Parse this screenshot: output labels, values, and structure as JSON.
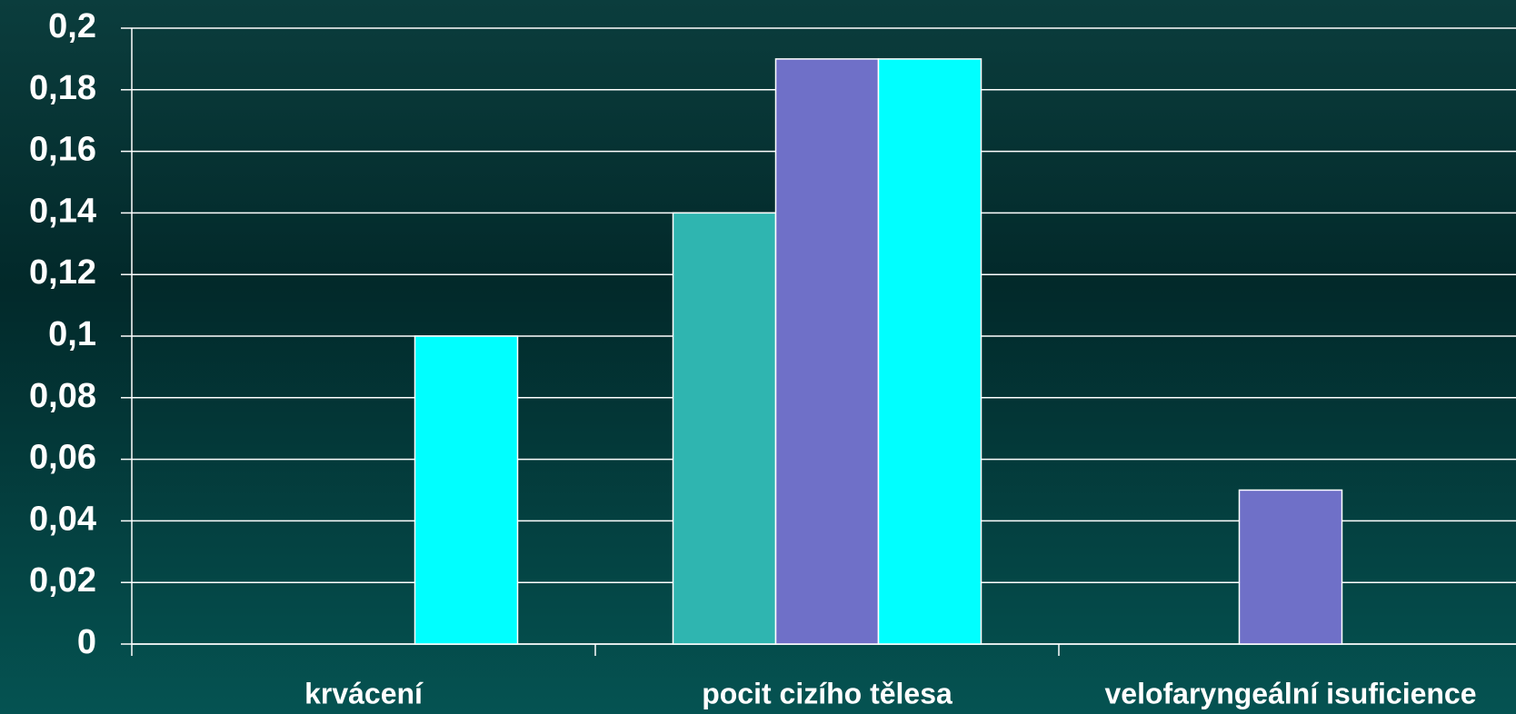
{
  "chart_data": {
    "type": "bar",
    "categories": [
      "krvácení",
      "pocit cizího tělesa",
      "velofaryngeální isuficience"
    ],
    "series": [
      {
        "color": "#2fb5b0",
        "values": [
          0,
          0.14,
          0
        ]
      },
      {
        "color": "#6f70c8",
        "values": [
          0,
          0.19,
          0.05
        ]
      },
      {
        "color": "#00ffff",
        "values": [
          0.1,
          0.19,
          0
        ]
      }
    ],
    "ylim": [
      0,
      0.2
    ],
    "yticks": [
      0,
      {
        "value": 0.02,
        "label": "0,02"
      },
      {
        "value": 0.04,
        "label": "0,04"
      },
      {
        "value": 0.06,
        "label": "0,06"
      },
      {
        "value": 0.08,
        "label": "0,08"
      },
      {
        "value": 0.1,
        "label": "0,1"
      },
      {
        "value": 0.12,
        "label": "0,12"
      },
      {
        "value": 0.14,
        "label": "0,14"
      },
      {
        "value": 0.16,
        "label": "0,16"
      },
      {
        "value": 0.18,
        "label": "0,18"
      },
      {
        "value": 0.2,
        "label": "0,2"
      }
    ],
    "grid": true
  }
}
